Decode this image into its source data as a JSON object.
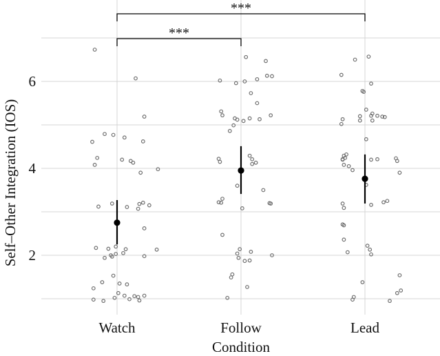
{
  "chart_data": {
    "type": "scatter",
    "xlabel": "Condition",
    "ylabel": "Self–Other Integration (IOS)",
    "categories": [
      "Watch",
      "Follow",
      "Lead"
    ],
    "ylim": [
      0.8,
      7.0
    ],
    "yticks": [
      2,
      4,
      6
    ],
    "grid": true,
    "series": [
      {
        "category": "Watch",
        "mean": 2.75,
        "ci": [
          2.25,
          3.27
        ],
        "points": [
          [
            -0.18,
            6.73
          ],
          [
            0.15,
            6.07
          ],
          [
            0.22,
            5.19
          ],
          [
            -0.1,
            4.79
          ],
          [
            -0.03,
            4.77
          ],
          [
            0.06,
            4.71
          ],
          [
            0.21,
            4.62
          ],
          [
            -0.2,
            4.61
          ],
          [
            -0.16,
            4.24
          ],
          [
            0.04,
            4.2
          ],
          [
            0.11,
            4.17
          ],
          [
            0.13,
            4.13
          ],
          [
            -0.18,
            4.08
          ],
          [
            0.33,
            3.98
          ],
          [
            0.19,
            3.9
          ],
          [
            0.21,
            3.21
          ],
          [
            0.18,
            3.18
          ],
          [
            0.26,
            3.15
          ],
          [
            -0.04,
            3.19
          ],
          [
            -0.15,
            3.12
          ],
          [
            0.08,
            3.11
          ],
          [
            0.17,
            3.07
          ],
          [
            0.22,
            2.62
          ],
          [
            -0.01,
            2.2
          ],
          [
            -0.17,
            2.17
          ],
          [
            -0.07,
            2.15
          ],
          [
            0.07,
            2.14
          ],
          [
            -0.01,
            2.03
          ],
          [
            0.32,
            2.13
          ],
          [
            0.05,
            2.05
          ],
          [
            0.22,
            1.98
          ],
          [
            -0.04,
            1.97
          ],
          [
            -0.05,
            2.0
          ],
          [
            -0.1,
            1.94
          ],
          [
            -0.03,
            1.53
          ],
          [
            -0.12,
            1.38
          ],
          [
            0.02,
            1.35
          ],
          [
            0.08,
            1.33
          ],
          [
            -0.19,
            1.24
          ],
          [
            0.01,
            1.13
          ],
          [
            0.06,
            1.07
          ],
          [
            0.22,
            1.07
          ],
          [
            0.14,
            1.06
          ],
          [
            0.17,
            1.04
          ],
          [
            -0.02,
            1.02
          ],
          [
            0.1,
            0.99
          ],
          [
            -0.19,
            0.98
          ],
          [
            -0.11,
            0.95
          ],
          [
            0.18,
            0.96
          ]
        ]
      },
      {
        "category": "Follow",
        "mean": 3.95,
        "ci": [
          3.41,
          4.51
        ],
        "points": [
          [
            0.04,
            6.56
          ],
          [
            0.2,
            6.47
          ],
          [
            0.21,
            6.13
          ],
          [
            0.25,
            6.12
          ],
          [
            0.13,
            6.05
          ],
          [
            -0.17,
            6.02
          ],
          [
            0.03,
            6.0
          ],
          [
            -0.04,
            5.96
          ],
          [
            0.08,
            5.73
          ],
          [
            0.13,
            5.5
          ],
          [
            -0.16,
            5.31
          ],
          [
            -0.15,
            5.22
          ],
          [
            0.24,
            5.22
          ],
          [
            -0.05,
            5.15
          ],
          [
            0.07,
            5.15
          ],
          [
            -0.03,
            5.12
          ],
          [
            0.15,
            5.13
          ],
          [
            0.02,
            5.09
          ],
          [
            -0.09,
            4.86
          ],
          [
            -0.06,
            4.99
          ],
          [
            0.07,
            4.29
          ],
          [
            0.09,
            4.21
          ],
          [
            0.12,
            4.13
          ],
          [
            -0.18,
            4.22
          ],
          [
            -0.17,
            4.15
          ],
          [
            0.09,
            4.1
          ],
          [
            -0.03,
            3.6
          ],
          [
            0.18,
            3.5
          ],
          [
            -0.15,
            3.3
          ],
          [
            -0.18,
            3.22
          ],
          [
            -0.16,
            3.21
          ],
          [
            0.23,
            3.2
          ],
          [
            0.24,
            3.19
          ],
          [
            0.01,
            3.08
          ],
          [
            -0.15,
            2.47
          ],
          [
            -0.01,
            2.14
          ],
          [
            0.08,
            2.08
          ],
          [
            -0.03,
            2.04
          ],
          [
            0.25,
            2.0
          ],
          [
            -0.02,
            1.94
          ],
          [
            0.07,
            1.88
          ],
          [
            0.03,
            1.87
          ],
          [
            -0.07,
            1.56
          ],
          [
            -0.08,
            1.49
          ],
          [
            0.05,
            1.27
          ],
          [
            -0.11,
            1.02
          ]
        ]
      },
      {
        "category": "Lead",
        "mean": 3.76,
        "ci": [
          3.19,
          4.32
        ],
        "points": [
          [
            0.03,
            6.57
          ],
          [
            -0.08,
            6.5
          ],
          [
            -0.19,
            6.15
          ],
          [
            0.05,
            5.95
          ],
          [
            -0.02,
            5.78
          ],
          [
            -0.01,
            5.76
          ],
          [
            0.01,
            5.35
          ],
          [
            0.06,
            5.26
          ],
          [
            -0.04,
            5.2
          ],
          [
            0.05,
            5.21
          ],
          [
            0.1,
            5.21
          ],
          [
            0.14,
            5.19
          ],
          [
            0.16,
            5.18
          ],
          [
            -0.18,
            5.13
          ],
          [
            0.06,
            5.1
          ],
          [
            -0.04,
            5.1
          ],
          [
            -0.19,
            5.02
          ],
          [
            0.01,
            4.67
          ],
          [
            -0.15,
            4.32
          ],
          [
            -0.17,
            4.29
          ],
          [
            -0.16,
            4.24
          ],
          [
            -0.18,
            4.21
          ],
          [
            -0.18,
            4.2
          ],
          [
            0.1,
            4.21
          ],
          [
            0.25,
            4.23
          ],
          [
            0.05,
            4.2
          ],
          [
            0.26,
            4.17
          ],
          [
            -0.17,
            4.08
          ],
          [
            -0.13,
            4.05
          ],
          [
            -0.1,
            3.96
          ],
          [
            0.28,
            3.9
          ],
          [
            0.01,
            3.62
          ],
          [
            0.18,
            3.25
          ],
          [
            0.15,
            3.22
          ],
          [
            -0.18,
            3.19
          ],
          [
            0.05,
            3.16
          ],
          [
            -0.17,
            3.09
          ],
          [
            -0.18,
            2.71
          ],
          [
            -0.17,
            2.69
          ],
          [
            -0.17,
            2.36
          ],
          [
            0.02,
            2.22
          ],
          [
            0.04,
            2.13
          ],
          [
            -0.14,
            2.07
          ],
          [
            0.05,
            2.02
          ],
          [
            0.28,
            1.54
          ],
          [
            -0.02,
            1.38
          ],
          [
            0.29,
            1.19
          ],
          [
            0.26,
            1.13
          ],
          [
            -0.09,
            1.04
          ],
          [
            -0.1,
            0.98
          ],
          [
            0.2,
            0.95
          ]
        ]
      }
    ],
    "annotations": [
      {
        "from": "Watch",
        "to": "Lead",
        "label": "***",
        "level": 1
      },
      {
        "from": "Watch",
        "to": "Follow",
        "label": "***",
        "level": 0
      }
    ]
  }
}
